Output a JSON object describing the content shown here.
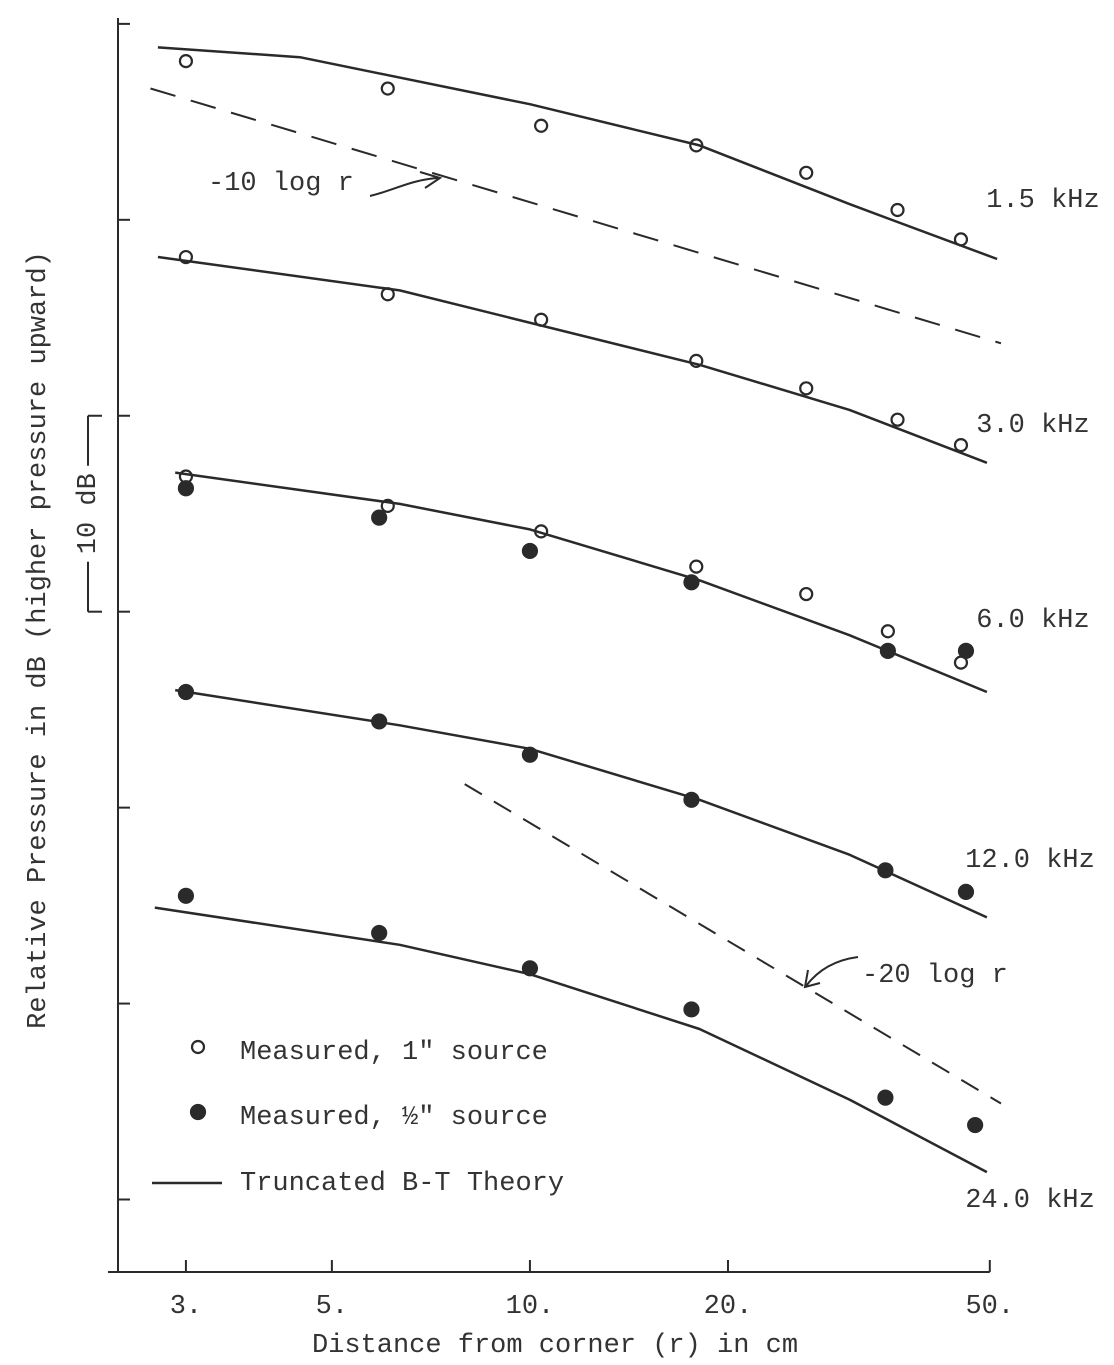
{
  "chart_data": {
    "type": "line",
    "xlabel": "Distance from corner (r) in cm",
    "ylabel": "Relative Pressure in dB  (higher pressure upward)",
    "log_x": true,
    "xlim": [
      2.3,
      52
    ],
    "xticks": [
      {
        "value": 3,
        "label": "3."
      },
      {
        "value": 5,
        "label": "5."
      },
      {
        "value": 10,
        "label": "10."
      },
      {
        "value": 20,
        "label": "20."
      },
      {
        "value": 50,
        "label": "50."
      }
    ],
    "ylim": [
      -3.7,
      60.3
    ],
    "yticks": [
      0,
      10,
      20,
      30,
      40,
      50,
      60
    ],
    "color": "#2a2a2a",
    "legend": [
      {
        "name": "Measured, 1\" source",
        "marker": "open"
      },
      {
        "name": "Measured, ½\" source",
        "marker": "filled"
      },
      {
        "name": "Truncated B-T Theory",
        "marker": "line"
      }
    ],
    "curves": [
      {
        "label": "1.5 kHz",
        "theory": {
          "x": [
            2.72,
            4.47,
            10,
            18.1,
            30.6,
            51.3
          ],
          "values": [
            58.8,
            58.3,
            55.9,
            53.8,
            50.8,
            48.0
          ]
        },
        "open": {
          "x": [
            3.0,
            6.08,
            10.4,
            17.9,
            26.3,
            36.2,
            45.2
          ],
          "values": [
            58.1,
            56.7,
            54.8,
            53.8,
            52.4,
            50.5,
            49.0
          ]
        }
      },
      {
        "label": "3.0 kHz",
        "theory": {
          "x": [
            2.72,
            6.34,
            18.1,
            30.6,
            49.5
          ],
          "values": [
            48.1,
            46.4,
            42.6,
            40.3,
            37.6
          ]
        },
        "open": {
          "x": [
            3.0,
            6.08,
            10.4,
            17.9,
            26.3,
            36.2,
            45.2
          ],
          "values": [
            48.1,
            46.2,
            44.9,
            42.8,
            41.4,
            39.8,
            38.5
          ]
        }
      },
      {
        "label": "6.0 kHz",
        "theory": {
          "x": [
            2.89,
            6.34,
            10,
            18.1,
            30.6,
            49.5
          ],
          "values": [
            37.1,
            35.5,
            34.2,
            31.6,
            28.8,
            25.9
          ]
        },
        "open": {
          "x": [
            3.0,
            6.08,
            10.4,
            17.9,
            26.3,
            35.0,
            45.2
          ],
          "values": [
            36.9,
            35.4,
            34.1,
            32.3,
            30.9,
            29.0,
            27.4
          ]
        },
        "filled": {
          "x": [
            3.0,
            5.9,
            10.0,
            17.6,
            35.0,
            46.0
          ],
          "values": [
            36.3,
            34.8,
            33.1,
            31.5,
            28.0,
            28.0
          ]
        }
      },
      {
        "label": "12.0 kHz",
        "theory": {
          "x": [
            2.89,
            6.34,
            10,
            18.1,
            30.6,
            49.5
          ],
          "values": [
            26.0,
            24.2,
            23.0,
            20.4,
            17.6,
            14.4
          ]
        },
        "filled": {
          "x": [
            3.0,
            5.9,
            10.0,
            17.6,
            34.7,
            46.0
          ],
          "values": [
            25.9,
            24.4,
            22.7,
            20.4,
            16.8,
            15.7
          ]
        }
      },
      {
        "label": "24.0 kHz",
        "theory": {
          "x": [
            2.69,
            6.34,
            10,
            18.1,
            30.6,
            49.5
          ],
          "values": [
            14.9,
            13.0,
            11.5,
            8.7,
            5.1,
            1.4
          ]
        },
        "filled": {
          "x": [
            3.0,
            5.9,
            10.0,
            17.6,
            34.7,
            47.5
          ],
          "values": [
            15.5,
            13.6,
            11.8,
            9.7,
            5.2,
            3.8
          ]
        }
      }
    ],
    "reference_lines": [
      {
        "label": "-10 log r",
        "x": [
          2.65,
          52
        ],
        "values": [
          56.7,
          43.7
        ]
      },
      {
        "label": "-20 log r",
        "x": [
          7.96,
          52
        ],
        "values": [
          21.2,
          4.9
        ]
      }
    ],
    "scale_annotation": {
      "label": "10 dB",
      "values": [
        30,
        40
      ]
    }
  }
}
